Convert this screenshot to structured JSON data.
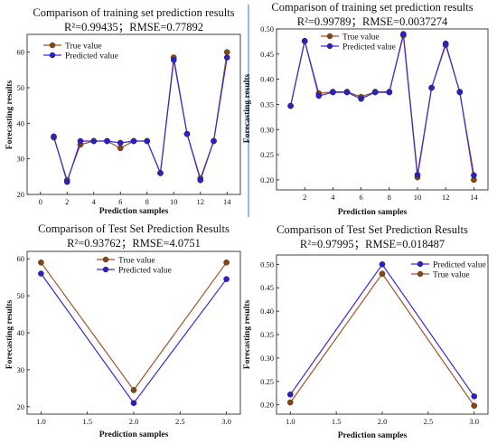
{
  "colors": {
    "true_line": "#a0522d",
    "true_marker": "#8b4513",
    "pred_line": "#3a2ad0",
    "pred_marker": "#2a1fc8",
    "divider": "#4a8fd6"
  },
  "chart_data": [
    {
      "type": "line",
      "title": "Comparison of training set prediction results",
      "subtitle": "R²=0.99435；RMSE=0.77892",
      "xlabel": "Prediction samples",
      "ylabel": "Forecasting results",
      "xlim": [
        -1,
        15
      ],
      "ylim": [
        20,
        65
      ],
      "xticks": [
        0,
        2,
        4,
        6,
        8,
        10,
        12,
        14
      ],
      "yticks": [
        20,
        30,
        40,
        50,
        60
      ],
      "legend_position": "top-left",
      "x": [
        1,
        2,
        3,
        4,
        5,
        6,
        7,
        8,
        9,
        10,
        11,
        12,
        13,
        14
      ],
      "series": [
        {
          "name": "True value",
          "values": [
            36,
            24,
            34,
            35,
            35,
            33,
            35,
            35,
            26,
            58.5,
            37,
            24.5,
            35,
            60
          ]
        },
        {
          "name": "Predicted value",
          "values": [
            36.3,
            23.5,
            35,
            35,
            35,
            34.5,
            35,
            35,
            26,
            57.8,
            37,
            24,
            35,
            58.5
          ]
        }
      ]
    },
    {
      "type": "line",
      "title": "Comparison of training set prediction results",
      "subtitle": "R²=0.99789；RMSE=0.0037274",
      "xlabel": "Prediction samples",
      "ylabel": "Forecasting results",
      "xlim": [
        0,
        15
      ],
      "ylim": [
        0.18,
        0.5
      ],
      "xticks": [
        2,
        4,
        6,
        8,
        10,
        12,
        14
      ],
      "yticks": [
        0.2,
        0.25,
        0.3,
        0.35,
        0.4,
        0.45,
        0.5
      ],
      "yticklabels": [
        "0.20",
        "0.25",
        "0.30",
        "0.35",
        "0.40",
        "0.45",
        "0.50"
      ],
      "legend_position": "top-center",
      "x": [
        1,
        2,
        3,
        4,
        5,
        6,
        7,
        8,
        9,
        10,
        11,
        12,
        13,
        14
      ],
      "series": [
        {
          "name": "True value",
          "values": [
            0.347,
            0.476,
            0.372,
            0.375,
            0.375,
            0.365,
            0.375,
            0.375,
            0.487,
            0.205,
            0.383,
            0.468,
            0.375,
            0.2
          ]
        },
        {
          "name": "Predicted value",
          "values": [
            0.347,
            0.476,
            0.367,
            0.374,
            0.374,
            0.361,
            0.374,
            0.374,
            0.49,
            0.21,
            0.383,
            0.471,
            0.374,
            0.209
          ]
        }
      ]
    },
    {
      "type": "line",
      "title": "Comparison of Test Set Prediction Results",
      "subtitle": "R²=0.93762；RMSE=4.0751",
      "xlabel": "Prediction samples",
      "ylabel": "Forecasting results",
      "xlim": [
        0.85,
        3.15
      ],
      "ylim": [
        18,
        62
      ],
      "xticks": [
        1.0,
        1.5,
        2.0,
        2.5,
        3.0
      ],
      "xticklabels": [
        "1.0",
        "1.5",
        "2.0",
        "2.5",
        "3.0"
      ],
      "yticks": [
        20,
        30,
        40,
        50,
        60
      ],
      "legend_position": "top-center",
      "x": [
        1,
        2,
        3
      ],
      "series": [
        {
          "name": "True value",
          "values": [
            59,
            24.5,
            59
          ]
        },
        {
          "name": "Predicted value",
          "values": [
            56,
            21,
            54.5
          ]
        }
      ]
    },
    {
      "type": "line",
      "title": "Comparison of Test Set Prediction Results",
      "subtitle": "R²=0.97995；RMSE=0.018487",
      "xlabel": "Prediction samples",
      "ylabel": "Forecasting results",
      "xlim": [
        0.85,
        3.15
      ],
      "ylim": [
        0.18,
        0.52
      ],
      "xticks": [
        1.0,
        1.5,
        2.0,
        2.5,
        3.0
      ],
      "xticklabels": [
        "1.0",
        "1.5",
        "2.0",
        "2.5",
        "3.0"
      ],
      "yticks": [
        0.2,
        0.25,
        0.3,
        0.35,
        0.4,
        0.45,
        0.5
      ],
      "yticklabels": [
        "0.20",
        "0.25",
        "0.30",
        "0.35",
        "0.40",
        "0.45",
        "0.50"
      ],
      "legend_position": "top-right",
      "x": [
        1,
        2,
        3
      ],
      "series": [
        {
          "name": "Predicted value",
          "values": [
            0.222,
            0.5,
            0.218
          ]
        },
        {
          "name": "True value",
          "values": [
            0.205,
            0.48,
            0.198
          ]
        }
      ]
    }
  ]
}
